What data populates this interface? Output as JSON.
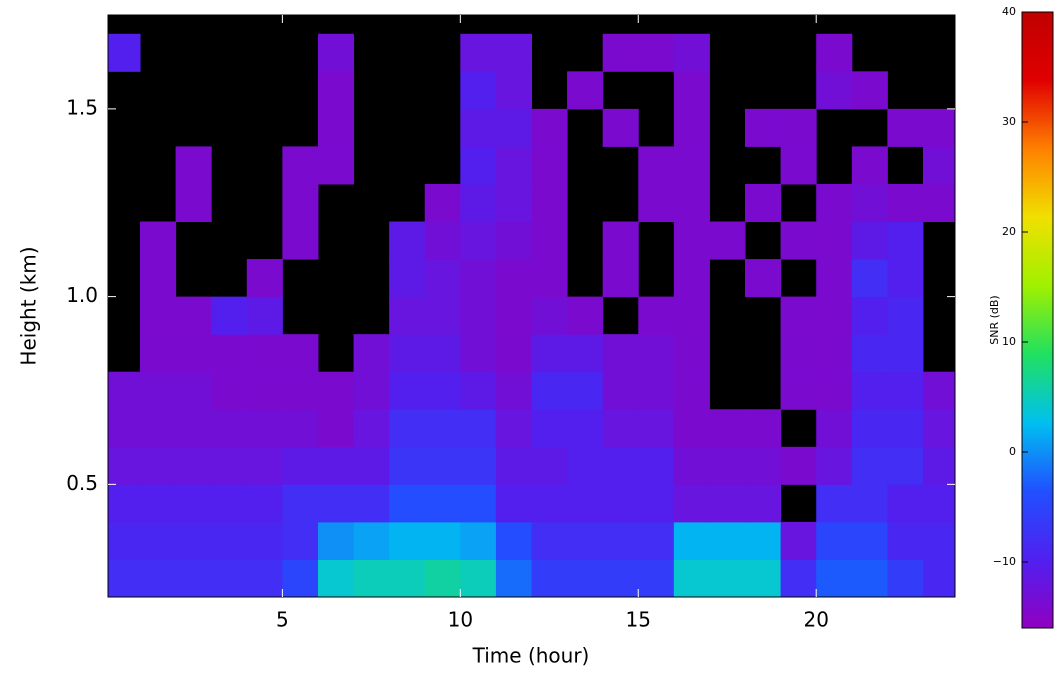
{
  "chart_data": {
    "type": "heatmap",
    "xlabel": "Time (hour)",
    "ylabel": "Height (km)",
    "colorbar_label": "SNR (dB)",
    "x": [
      0.5,
      1.5,
      2.5,
      3.5,
      4.5,
      5.5,
      6.5,
      7.5,
      8.5,
      9.5,
      10.5,
      11.5,
      12.5,
      13.5,
      14.5,
      15.5,
      16.5,
      17.5,
      18.5,
      19.5,
      20.5,
      21.5,
      22.5,
      23.5
    ],
    "y": [
      0.25,
      0.35,
      0.45,
      0.55,
      0.65,
      0.75,
      0.85,
      0.95,
      1.05,
      1.15,
      1.25,
      1.35,
      1.45,
      1.55,
      1.65
    ],
    "z": [
      [
        -8,
        -8,
        -8,
        -8,
        -8,
        -5,
        4,
        5,
        5,
        6,
        5,
        -2,
        -6,
        -6,
        -6,
        -6,
        4,
        4,
        4,
        -8,
        -3,
        -3,
        -6,
        -9
      ],
      [
        -9,
        -9,
        -9,
        -9,
        -9,
        -8,
        0,
        1,
        2,
        2,
        1,
        -4,
        -8,
        -8,
        -8,
        -8,
        2,
        2,
        2,
        -12,
        -5,
        -5,
        -9,
        -9
      ],
      [
        -10,
        -10,
        -10,
        -10,
        -10,
        -8,
        -8,
        -8,
        -4,
        -4,
        -4,
        -10,
        -10,
        -10,
        -10,
        -10,
        -12,
        -12,
        -12,
        null,
        -8,
        -8,
        -10,
        -10
      ],
      [
        -12,
        -12,
        -12,
        -12,
        -12,
        -11,
        -11,
        -11,
        -7,
        -7,
        -7,
        -11,
        -11,
        -10,
        -10,
        -10,
        -13,
        -13,
        -13,
        -14,
        -12,
        -8,
        -8,
        -11
      ],
      [
        -13,
        -13,
        -13,
        -13,
        -13,
        -13,
        -14,
        -12,
        -8,
        -8,
        -8,
        -12,
        -10,
        -10,
        -12,
        -12,
        -14,
        -14,
        -14,
        null,
        -13,
        -9,
        -9,
        -12
      ],
      [
        -13,
        -13,
        -13,
        -14,
        -14,
        -14,
        -14,
        -13,
        -10,
        -10,
        -11,
        -13,
        -9,
        -9,
        -13,
        -13,
        -14,
        null,
        null,
        -14,
        -14,
        -10,
        -10,
        -13
      ],
      [
        null,
        -14,
        -14,
        -14,
        -14,
        -14,
        null,
        -13,
        -11,
        -11,
        -13,
        -14,
        -11,
        -11,
        -13,
        -13,
        -14,
        null,
        null,
        -14,
        -14,
        -9,
        -9,
        null
      ],
      [
        null,
        -14,
        -14,
        -10,
        -11,
        null,
        null,
        null,
        -12,
        -12,
        -13,
        -14,
        -13,
        -14,
        null,
        -14,
        -14,
        null,
        null,
        -14,
        -14,
        -10,
        -9,
        null
      ],
      [
        null,
        -14,
        null,
        null,
        -14,
        null,
        null,
        null,
        -11,
        -12,
        -13,
        -14,
        -14,
        null,
        -14,
        null,
        -14,
        null,
        -14,
        null,
        -14,
        -8,
        -10,
        null
      ],
      [
        null,
        -14,
        null,
        null,
        null,
        -14,
        null,
        null,
        -11,
        -13,
        -12,
        -13,
        -14,
        null,
        -14,
        null,
        -14,
        -14,
        null,
        -14,
        -14,
        -11,
        -10,
        null
      ],
      [
        null,
        null,
        -14,
        null,
        null,
        -14,
        null,
        null,
        null,
        -14,
        -11,
        -12,
        -14,
        null,
        null,
        -14,
        -14,
        null,
        -14,
        null,
        -14,
        -13,
        -14,
        -14
      ],
      [
        null,
        null,
        -14,
        null,
        null,
        -14,
        -14,
        null,
        null,
        null,
        -10,
        -12,
        -14,
        null,
        null,
        -14,
        -14,
        null,
        null,
        -14,
        null,
        -14,
        null,
        -13
      ],
      [
        null,
        null,
        null,
        null,
        null,
        null,
        -14,
        null,
        null,
        null,
        -11,
        -11,
        -14,
        null,
        -14,
        null,
        -14,
        null,
        -14,
        -14,
        null,
        null,
        -14,
        -14
      ],
      [
        null,
        null,
        null,
        null,
        null,
        null,
        -14,
        null,
        null,
        null,
        -10,
        -12,
        null,
        -14,
        null,
        null,
        -14,
        null,
        null,
        null,
        -13,
        -14,
        null,
        null
      ],
      [
        -10,
        null,
        null,
        null,
        null,
        null,
        -13,
        null,
        null,
        null,
        -12,
        -12,
        null,
        null,
        -14,
        -14,
        -13,
        null,
        null,
        null,
        -14,
        null,
        null,
        null
      ]
    ],
    "xlim": [
      0.1,
      23.9
    ],
    "ylim": [
      0.2,
      1.75
    ],
    "xticks": [
      5,
      10,
      15,
      20
    ],
    "yticks": [
      0.5,
      {
        "value": 1,
        "label": "1.0"
      },
      1.5
    ],
    "clim": [
      -16,
      40
    ],
    "colorbar_ticks": [
      40,
      30,
      20,
      10,
      0,
      {
        "value": -10,
        "label": "−10"
      }
    ],
    "colorscale": [
      "#9000c0",
      "#5020f0",
      "#2050ff",
      "#00c0f0",
      "#20e060",
      "#a0f000",
      "#f0e000",
      "#ff8000",
      "#e00000",
      "#c00000"
    ],
    "background": "#000000"
  }
}
